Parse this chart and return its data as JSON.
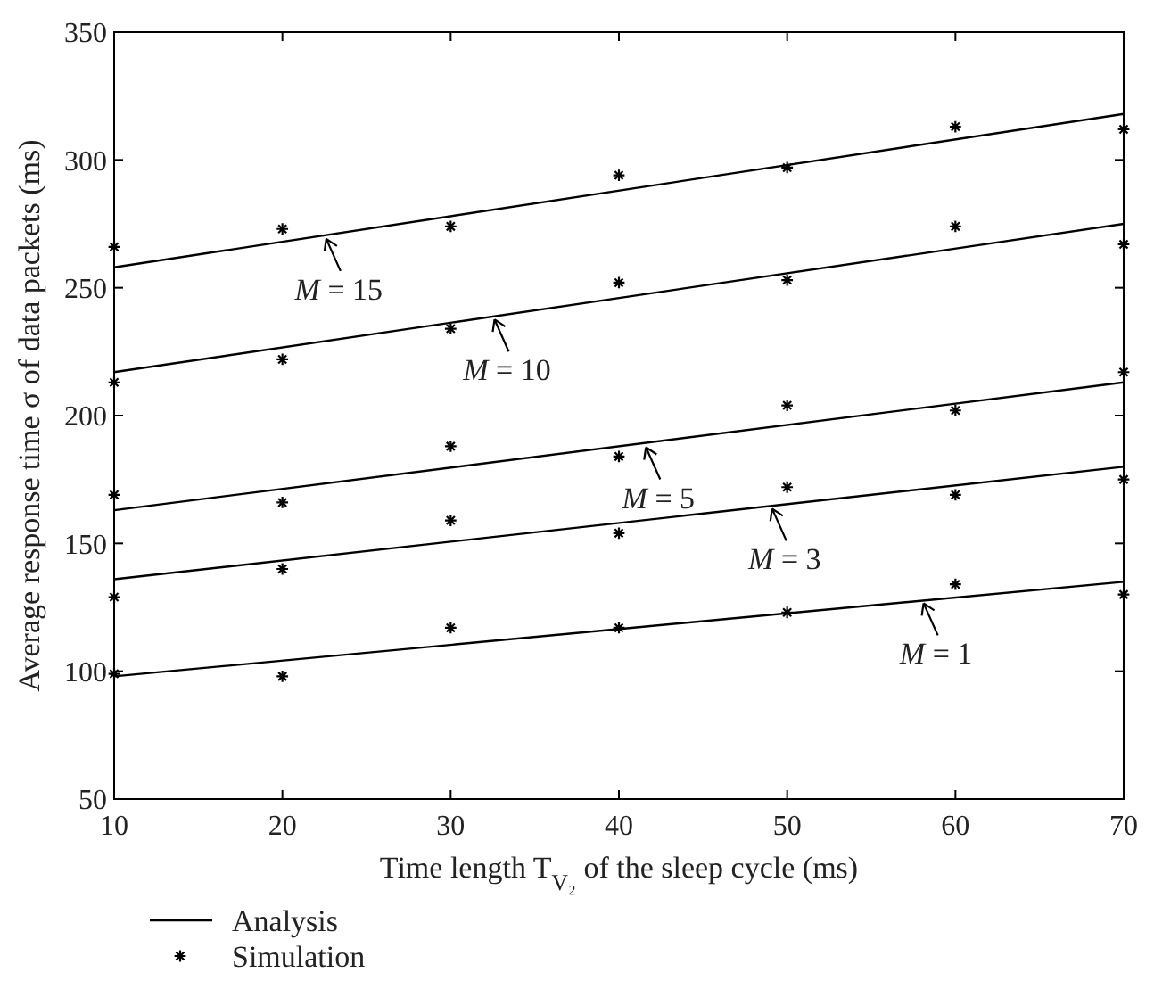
{
  "chart_data": {
    "type": "line",
    "xlabel": "Time length T$_{V₂}$ of the sleep cycle (ms)",
    "ylabel": "Average response time σ of data packets (ms)",
    "x": [
      10,
      70
    ],
    "xlim": [
      10,
      70
    ],
    "ylim": [
      50,
      350
    ],
    "xticks": [
      10,
      20,
      30,
      40,
      50,
      60,
      70
    ],
    "yticks": [
      50,
      100,
      150,
      200,
      250,
      300,
      350
    ],
    "grid": false,
    "legend": "bottom left",
    "series": [
      {
        "name": "Analysis",
        "color": "#000000",
        "line_style": "solid",
        "values": [
          258,
          318
        ]
      },
      {
        "color": "#000000",
        "line_style": "solid",
        "values": [
          217,
          275
        ]
      },
      {
        "color": "#000000",
        "line_style": "solid",
        "values": [
          163,
          213
        ]
      },
      {
        "color": "#000000",
        "line_style": "solid",
        "values": [
          136,
          180
        ]
      },
      {
        "color": "#000000",
        "line_style": "solid",
        "values": [
          98,
          135
        ]
      },
      {
        "name": "Simulation",
        "type": "scatter",
        "color": "#000000",
        "marker": "cross",
        "x": [
          10,
          20,
          30,
          40,
          50,
          60,
          70
        ],
        "values": [
          266,
          273,
          274,
          294,
          297,
          313,
          312
        ]
      },
      {
        "type": "scatter",
        "color": "#000000",
        "marker": "cross",
        "x": [
          10,
          20,
          30,
          40,
          50,
          60,
          70
        ],
        "values": [
          213,
          222,
          234,
          252,
          253,
          274,
          267
        ]
      },
      {
        "type": "scatter",
        "color": "#000000",
        "marker": "cross",
        "x": [
          10,
          20,
          30,
          40,
          50,
          60,
          70
        ],
        "values": [
          169,
          166,
          188,
          184,
          204,
          202,
          217
        ]
      },
      {
        "type": "scatter",
        "color": "#000000",
        "marker": "cross",
        "x": [
          10,
          20,
          30,
          40,
          50,
          60,
          70
        ],
        "values": [
          129,
          140,
          159,
          154,
          172,
          169,
          175
        ]
      },
      {
        "type": "scatter",
        "color": "#000000",
        "marker": "cross",
        "x": [
          10,
          20,
          30,
          40,
          50,
          60,
          70
        ],
        "values": [
          99,
          98,
          117,
          117,
          123,
          134,
          130
        ]
      }
    ],
    "annotations": [
      {
        "text": "M = 15",
        "x": 22.5,
        "y": 270.5
      },
      {
        "text": "M = 10",
        "x": 32.5,
        "y": 239
      },
      {
        "text": "M = 5",
        "x": 41.5,
        "y": 189
      },
      {
        "text": "M = 3",
        "x": 49,
        "y": 165
      },
      {
        "text": "M = 1",
        "x": 58,
        "y": 128
      }
    ]
  }
}
